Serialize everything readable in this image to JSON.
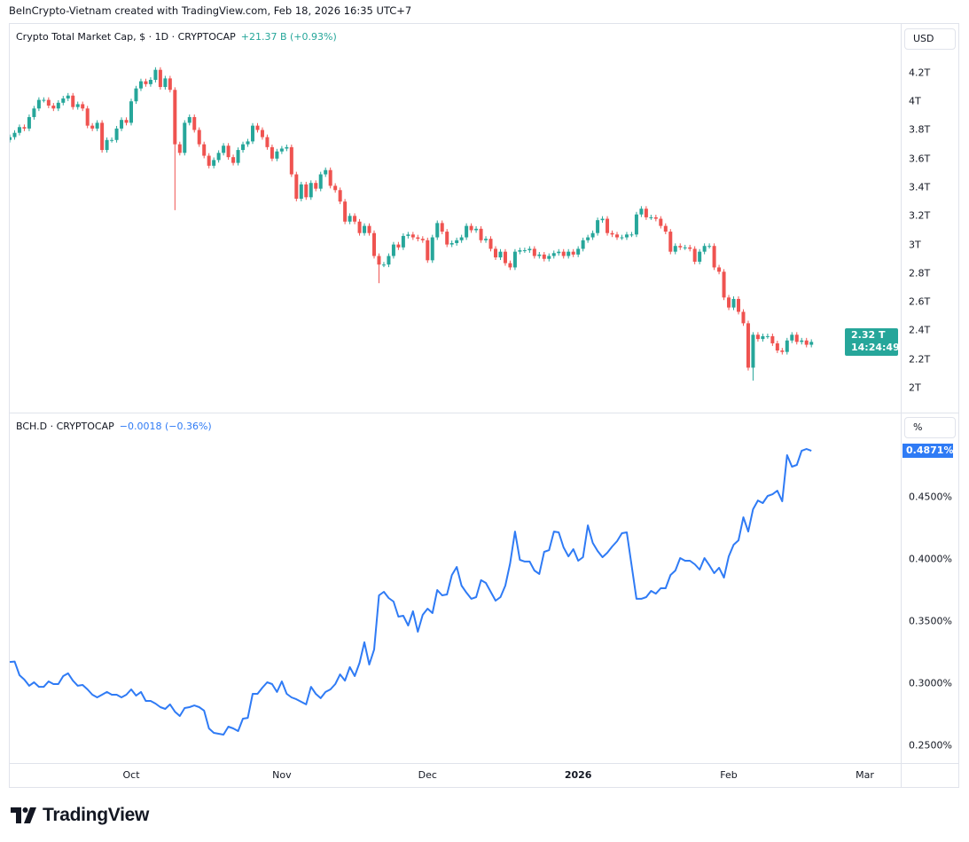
{
  "credit": "BeInCrypto-Vietnam created with TradingView.com, Feb 18, 2026 16:35 UTC+7",
  "top_pane": {
    "legend_title": "Crypto Total Market Cap, $ · 1D · CRYPTOCAP",
    "legend_change": "+21.37 B (+0.93%)",
    "unit": "USD",
    "price_tag": "2.32 T",
    "countdown": "14:24:49",
    "yticks": [
      "4.2T",
      "4T",
      "3.8T",
      "3.6T",
      "3.4T",
      "3.2T",
      "3T",
      "2.8T",
      "2.6T",
      "2.4T",
      "2.2T",
      "2T"
    ]
  },
  "bottom_pane": {
    "legend_title": "BCH.D · CRYPTOCAP",
    "legend_change": "−0.0018 (−0.36%)",
    "unit": "%",
    "value_tag": "0.4871%",
    "yticks": [
      "0.4500%",
      "0.4000%",
      "0.3500%",
      "0.3000%",
      "0.2500%"
    ]
  },
  "xticks": [
    {
      "label": "Oct",
      "date": "2025-10-01",
      "bold": false
    },
    {
      "label": "Nov",
      "date": "2025-11-01",
      "bold": false
    },
    {
      "label": "Dec",
      "date": "2025-12-01",
      "bold": false
    },
    {
      "label": "2026",
      "date": "2026-01-01",
      "bold": true
    },
    {
      "label": "Feb",
      "date": "2026-02-01",
      "bold": false
    },
    {
      "label": "Mar",
      "date": "2026-03-01",
      "bold": false
    }
  ],
  "brand": "TradingView",
  "colors": {
    "up": "#26a69a",
    "down": "#ef5350",
    "line": "#2f7bf5",
    "text": "#131722",
    "grid": "#e0e3eb"
  },
  "chart_data": [
    {
      "type": "candlestick",
      "title": "Crypto Total Market Cap, $ · 1D · CRYPTOCAP",
      "interval": "1D",
      "start_date": "2025-09-06",
      "end_date": "2026-02-18",
      "unit": "T USD",
      "ylim": [
        1.9,
        4.35
      ],
      "first_open": 3.73,
      "close": [
        3.75,
        3.78,
        3.82,
        3.81,
        3.89,
        3.95,
        4.01,
        4.01,
        3.97,
        3.95,
        3.99,
        4.02,
        4.04,
        3.96,
        3.98,
        3.95,
        3.83,
        3.81,
        3.85,
        3.66,
        3.73,
        3.73,
        3.81,
        3.87,
        3.85,
        4.0,
        4.09,
        4.14,
        4.12,
        4.15,
        4.22,
        4.1,
        4.16,
        4.08,
        3.7,
        3.64,
        3.85,
        3.89,
        3.8,
        3.7,
        3.62,
        3.55,
        3.59,
        3.64,
        3.69,
        3.61,
        3.57,
        3.66,
        3.7,
        3.72,
        3.83,
        3.8,
        3.75,
        3.68,
        3.6,
        3.65,
        3.67,
        3.68,
        3.49,
        3.32,
        3.42,
        3.33,
        3.43,
        3.39,
        3.49,
        3.52,
        3.41,
        3.38,
        3.3,
        3.16,
        3.2,
        3.16,
        3.08,
        3.13,
        3.08,
        2.92,
        2.86,
        2.86,
        2.92,
        3.0,
        2.98,
        3.06,
        3.07,
        3.05,
        3.04,
        3.03,
        2.89,
        3.05,
        3.15,
        3.09,
        3.0,
        3.01,
        3.03,
        3.05,
        3.13,
        3.1,
        3.11,
        3.03,
        3.04,
        2.97,
        2.91,
        2.95,
        2.87,
        2.84,
        2.95,
        2.96,
        2.96,
        2.97,
        2.92,
        2.93,
        2.9,
        2.92,
        2.94,
        2.95,
        2.92,
        2.95,
        2.93,
        2.97,
        3.03,
        3.05,
        3.08,
        3.17,
        3.18,
        3.08,
        3.07,
        3.05,
        3.05,
        3.07,
        3.07,
        3.21,
        3.25,
        3.19,
        3.19,
        3.18,
        3.13,
        3.09,
        2.95,
        2.99,
        2.98,
        2.98,
        2.97,
        2.88,
        2.95,
        2.99,
        2.99,
        2.84,
        2.81,
        2.63,
        2.56,
        2.62,
        2.53,
        2.45,
        2.14,
        2.37,
        2.34,
        2.36,
        2.36,
        2.31,
        2.26,
        2.25,
        2.33,
        2.37,
        2.32,
        2.33,
        2.3,
        2.32
      ],
      "wick_lows": {
        "2025-10-10": 3.24,
        "2025-11-21": 2.73,
        "2026-02-05": 2.12,
        "2026-02-06": 2.05
      }
    },
    {
      "type": "line",
      "title": "BCH.D · CRYPTOCAP",
      "interval": "1D",
      "start_date": "2025-09-06",
      "end_date": "2026-02-18",
      "unit": "%",
      "ylim": [
        0.2428,
        0.5243
      ],
      "values": [
        0.3171,
        0.3174,
        0.3064,
        0.3029,
        0.2979,
        0.3007,
        0.2971,
        0.2971,
        0.3014,
        0.2993,
        0.2993,
        0.3057,
        0.3079,
        0.3021,
        0.2979,
        0.2986,
        0.295,
        0.2907,
        0.2886,
        0.2907,
        0.2929,
        0.2907,
        0.2907,
        0.2886,
        0.2907,
        0.295,
        0.29,
        0.2929,
        0.2857,
        0.2857,
        0.2836,
        0.2807,
        0.2793,
        0.2829,
        0.2771,
        0.2736,
        0.28,
        0.2807,
        0.2821,
        0.2807,
        0.2779,
        0.2636,
        0.26,
        0.2593,
        0.2586,
        0.265,
        0.2636,
        0.2614,
        0.2714,
        0.2721,
        0.2914,
        0.2914,
        0.2964,
        0.3007,
        0.2993,
        0.2929,
        0.3014,
        0.2914,
        0.2886,
        0.2871,
        0.285,
        0.2829,
        0.2971,
        0.2914,
        0.2879,
        0.2929,
        0.295,
        0.2993,
        0.3071,
        0.3021,
        0.3129,
        0.3057,
        0.3164,
        0.3329,
        0.315,
        0.3271,
        0.3707,
        0.3736,
        0.3686,
        0.3657,
        0.3536,
        0.3543,
        0.3464,
        0.3579,
        0.3414,
        0.355,
        0.36,
        0.3564,
        0.375,
        0.3707,
        0.3714,
        0.3871,
        0.3936,
        0.3786,
        0.3729,
        0.3679,
        0.3693,
        0.3829,
        0.3807,
        0.3736,
        0.3664,
        0.3693,
        0.3786,
        0.3964,
        0.4221,
        0.3993,
        0.3979,
        0.3979,
        0.3907,
        0.3879,
        0.4057,
        0.4071,
        0.4221,
        0.4214,
        0.4093,
        0.4021,
        0.4079,
        0.3986,
        0.4014,
        0.4271,
        0.4129,
        0.4064,
        0.4014,
        0.405,
        0.41,
        0.4143,
        0.4207,
        0.4214,
        0.395,
        0.3679,
        0.3679,
        0.3693,
        0.3743,
        0.3721,
        0.3764,
        0.3764,
        0.3871,
        0.3907,
        0.4007,
        0.3986,
        0.3986,
        0.3957,
        0.3914,
        0.4007,
        0.395,
        0.3886,
        0.3929,
        0.385,
        0.4021,
        0.4114,
        0.415,
        0.4336,
        0.4221,
        0.44,
        0.4471,
        0.445,
        0.4507,
        0.4521,
        0.455,
        0.4464,
        0.4836,
        0.4743,
        0.4757,
        0.4871,
        0.4886,
        0.4871
      ]
    }
  ]
}
